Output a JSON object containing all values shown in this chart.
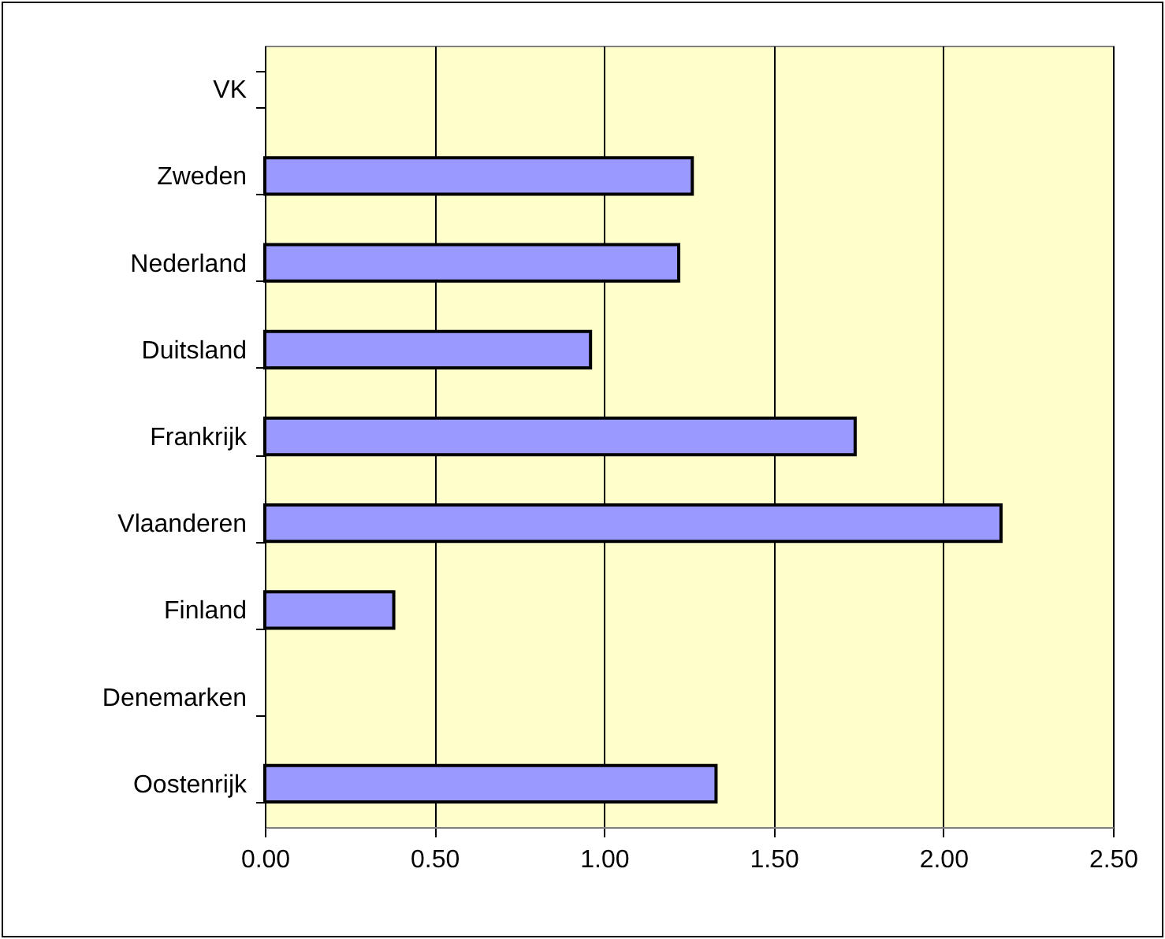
{
  "chart_data": {
    "type": "bar",
    "orientation": "horizontal",
    "categories": [
      "VK",
      "Zweden",
      "Nederland",
      "Duitsland",
      "Frankrijk",
      "Vlaanderen",
      "Finland",
      "Denemarken",
      "Oostenrijk"
    ],
    "values": [
      null,
      1.26,
      1.22,
      0.96,
      1.74,
      2.17,
      0.38,
      null,
      1.33
    ],
    "color": "#9999ff",
    "xlim": [
      0,
      2.5
    ],
    "xticks": [
      {
        "value": 0,
        "label": "0.00"
      },
      {
        "value": 0.5,
        "label": "0.50"
      },
      {
        "value": 1,
        "label": "1.00"
      },
      {
        "value": 1.5,
        "label": "1.50"
      },
      {
        "value": 2,
        "label": "2.00"
      },
      {
        "value": 2.5,
        "label": "2.50"
      }
    ],
    "grid": "x"
  }
}
